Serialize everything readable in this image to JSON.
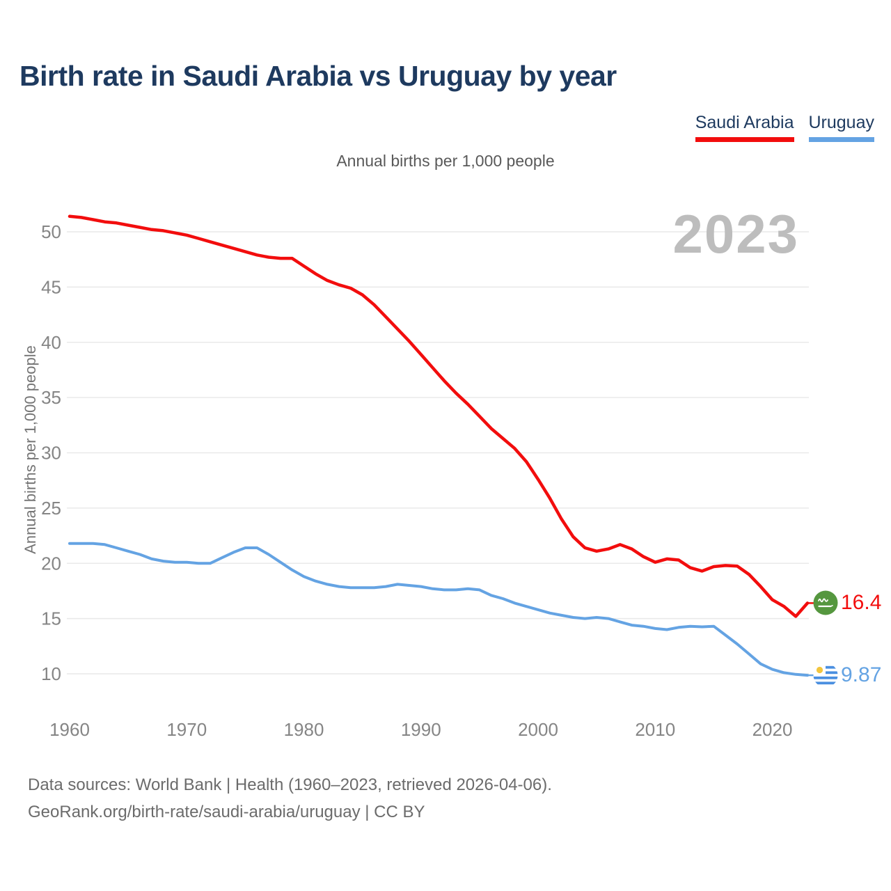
{
  "page": {
    "title": "Birth rate in Saudi Arabia vs Uruguay by year",
    "subtitle": "Annual births per 1,000 people",
    "watermark": "2023"
  },
  "legend": {
    "items": [
      {
        "label": "Saudi Arabia",
        "color": "#f20d0d"
      },
      {
        "label": "Uruguay",
        "color": "#64a3e3"
      }
    ]
  },
  "y_axis": {
    "title": "Annual births per 1,000 people"
  },
  "end_labels": [
    {
      "series": "Saudi Arabia",
      "value": "16.4",
      "color": "#f20d0d",
      "flag": "saudi-arabia-flag"
    },
    {
      "series": "Uruguay",
      "value": "9.87",
      "color": "#64a3e3",
      "flag": "uruguay-flag"
    }
  ],
  "footer": {
    "line1": "Data sources: World Bank | Health (1960–2023, retrieved 2026-04-06).",
    "line2": "GeoRank.org/birth-rate/saudi-arabia/uruguay | CC BY"
  },
  "flag_colors": {
    "saudi_green": "#55973f",
    "uruguay_blue": "#4a8fe0",
    "uruguay_sun": "#f2c53d"
  },
  "chart_data": {
    "type": "line",
    "title": "Annual births per 1,000 people",
    "xlabel": "",
    "ylabel": "Annual births per 1,000 people",
    "x": [
      1960,
      1961,
      1962,
      1963,
      1964,
      1965,
      1966,
      1967,
      1968,
      1969,
      1970,
      1971,
      1972,
      1973,
      1974,
      1975,
      1976,
      1977,
      1978,
      1979,
      1980,
      1981,
      1982,
      1983,
      1984,
      1985,
      1986,
      1987,
      1988,
      1989,
      1990,
      1991,
      1992,
      1993,
      1994,
      1995,
      1996,
      1997,
      1998,
      1999,
      2000,
      2001,
      2002,
      2003,
      2004,
      2005,
      2006,
      2007,
      2008,
      2009,
      2010,
      2011,
      2012,
      2013,
      2014,
      2015,
      2016,
      2017,
      2018,
      2019,
      2020,
      2021,
      2022,
      2023
    ],
    "series": [
      {
        "name": "Saudi Arabia",
        "color": "#f20d0d",
        "final_label": "16.4",
        "values": [
          51.4,
          51.3,
          51.1,
          50.9,
          50.8,
          50.6,
          50.4,
          50.2,
          50.1,
          49.9,
          49.7,
          49.4,
          49.1,
          48.8,
          48.5,
          48.2,
          47.9,
          47.7,
          47.6,
          47.6,
          46.9,
          46.2,
          45.6,
          45.2,
          44.9,
          44.3,
          43.4,
          42.3,
          41.2,
          40.1,
          38.9,
          37.7,
          36.5,
          35.4,
          34.4,
          33.3,
          32.2,
          31.3,
          30.4,
          29.2,
          27.6,
          25.9,
          24.0,
          22.4,
          21.4,
          21.1,
          21.3,
          21.7,
          21.3,
          20.6,
          20.1,
          20.4,
          20.3,
          19.6,
          19.3,
          19.7,
          19.8,
          19.75,
          19.0,
          17.9,
          16.7,
          16.1,
          15.2,
          16.4
        ]
      },
      {
        "name": "Uruguay",
        "color": "#64a3e3",
        "final_label": "9.87",
        "values": [
          21.8,
          21.8,
          21.8,
          21.7,
          21.4,
          21.1,
          20.8,
          20.4,
          20.2,
          20.1,
          20.1,
          20.0,
          20.0,
          20.5,
          21.0,
          21.4,
          21.4,
          20.8,
          20.1,
          19.4,
          18.8,
          18.4,
          18.1,
          17.9,
          17.8,
          17.8,
          17.8,
          17.9,
          18.1,
          18.0,
          17.9,
          17.7,
          17.6,
          17.6,
          17.7,
          17.6,
          17.1,
          16.8,
          16.4,
          16.1,
          15.8,
          15.5,
          15.3,
          15.1,
          15.0,
          15.1,
          15.0,
          14.7,
          14.4,
          14.3,
          14.1,
          14.0,
          14.2,
          14.3,
          14.25,
          14.3,
          13.5,
          12.7,
          11.8,
          10.9,
          10.4,
          10.1,
          9.95,
          9.87
        ]
      }
    ],
    "xticks": [
      1960,
      1970,
      1980,
      1990,
      2000,
      2010,
      2020
    ],
    "yticks": [
      10,
      15,
      20,
      25,
      30,
      35,
      40,
      45,
      50
    ],
    "xlim": [
      1960,
      2023
    ],
    "ylim": [
      10,
      52
    ],
    "grid": "horizontal",
    "legend_position": "top-right"
  }
}
